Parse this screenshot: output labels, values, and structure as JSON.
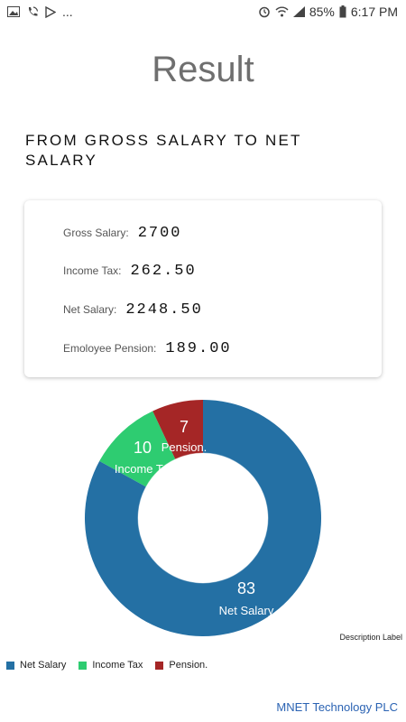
{
  "status_bar": {
    "battery": "85%",
    "time": "6:17 PM",
    "more": "...",
    "icons": [
      "gallery-icon",
      "phone-wifi-icon",
      "play-store-icon",
      "alarm-icon",
      "wifi-icon",
      "signal-icon",
      "battery-icon"
    ]
  },
  "page": {
    "title": "Result",
    "subtitle": "FROM GROSS SALARY TO NET SALARY"
  },
  "summary": {
    "gross_label": "Gross Salary:",
    "gross_value": "2700",
    "tax_label": "Income Tax:",
    "tax_value": "262.50",
    "net_label": "Net Salary:",
    "net_value": "2248.50",
    "pension_label": "Emoloyee Pension:",
    "pension_value": "189.00"
  },
  "chart_data": {
    "type": "pie",
    "categories": [
      "Net Salary",
      "Income Tax",
      "Pension."
    ],
    "values": [
      83,
      10,
      7
    ],
    "colors": [
      "#2470a4",
      "#2ecc71",
      "#a52626"
    ],
    "description_label": "Description Label",
    "legend": [
      "Net Salary",
      "Income Tax",
      "Pension."
    ],
    "legend_position": "bottom-left"
  },
  "footer": {
    "text": "MNET Technology PLC"
  }
}
